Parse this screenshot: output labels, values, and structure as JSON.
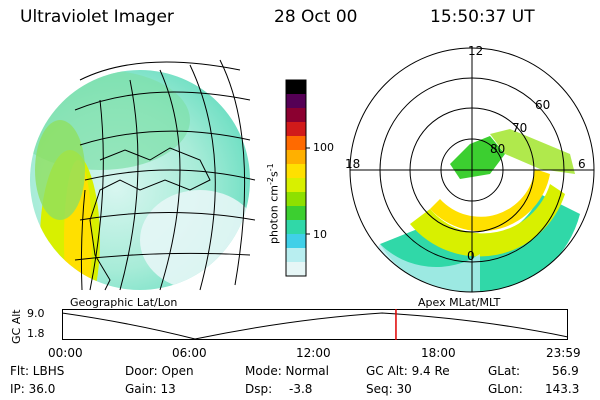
{
  "header": {
    "title": "Ultraviolet Imager",
    "date": "28 Oct 00",
    "time": "15:50:37 UT"
  },
  "left_panel": {
    "label": "Geographic Lat/Lon"
  },
  "right_panel": {
    "label": "Apex MLat/MLT",
    "mlt_labels": [
      "12",
      "18",
      "6",
      "0"
    ],
    "lat_labels": [
      "60",
      "70",
      "80"
    ]
  },
  "colorbar": {
    "unit": "photon cm",
    "exp1": "-2",
    "s": "s",
    "exp2": "-1",
    "tick_labels": [
      "100",
      "10"
    ],
    "colors": [
      "#000000",
      "#550055",
      "#8b0030",
      "#d11a1a",
      "#ff6a00",
      "#ffb000",
      "#ffe000",
      "#d8f000",
      "#8ee000",
      "#3ccf30",
      "#30d8a8",
      "#40d0e8",
      "#b8eef0",
      "#e6f6f6"
    ]
  },
  "altitude_plot": {
    "ylabel": "GC Alt",
    "y_ticks": [
      "9.0",
      "1.8"
    ],
    "x_ticks": [
      "00:00",
      "06:00",
      "12:00",
      "18:00",
      "23:59"
    ],
    "current_time_hours": 15.84
  },
  "info": {
    "flt": "Flt: LBHS",
    "ip": "IP: 36.0",
    "door": "Door: Open",
    "gain": "Gain: 13",
    "mode": "Mode: Normal",
    "dsp_label": "Dsp:",
    "dsp_value": "-3.8",
    "gcalt": "GC Alt: 9.4 Re",
    "seq": "Seq: 30",
    "glat_label": "GLat:",
    "glat_value": "56.9",
    "glon_label": "GLon:",
    "glon_value": "143.3"
  }
}
